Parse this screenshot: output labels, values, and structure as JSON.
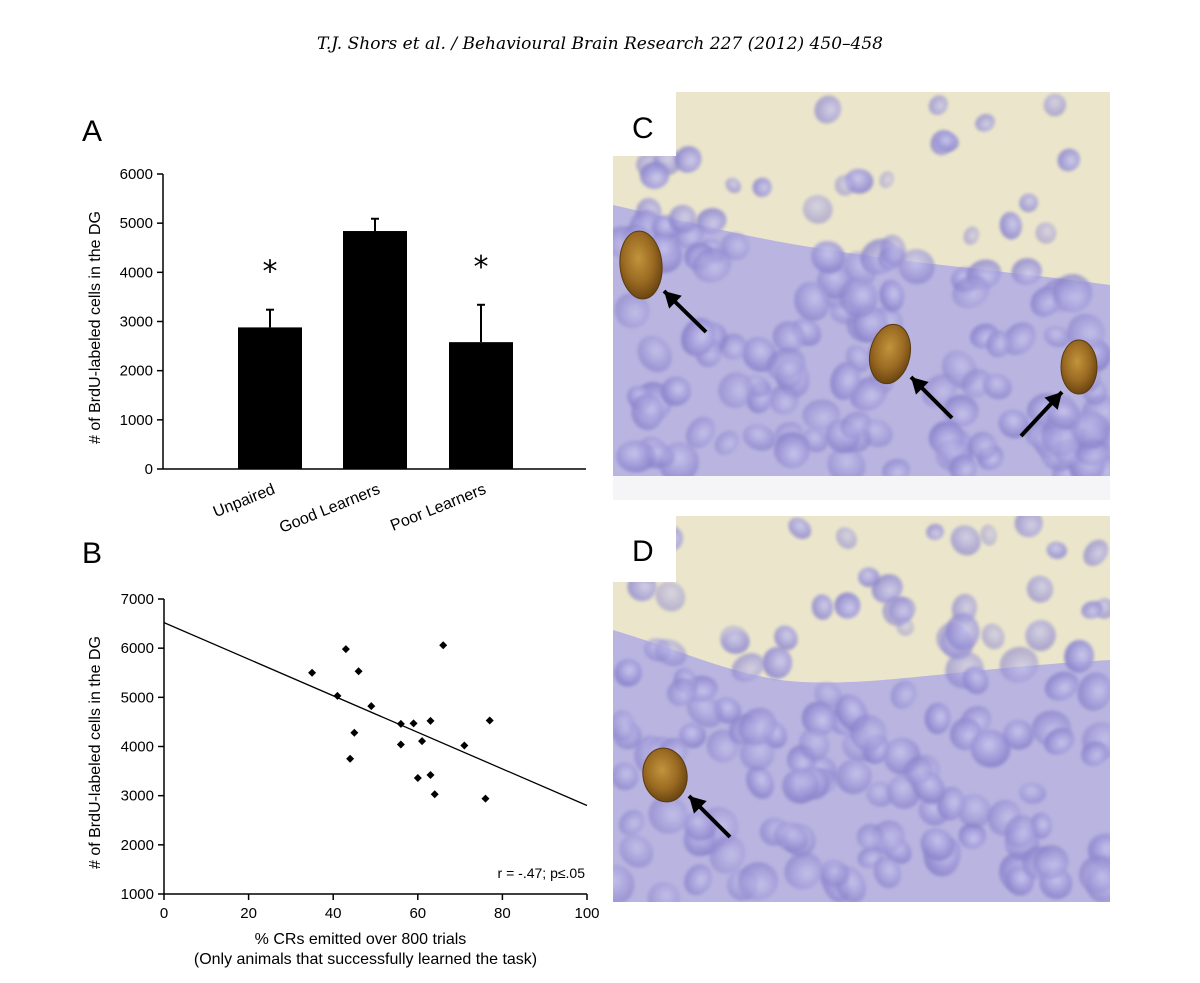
{
  "header": {
    "citation": "T.J. Shors et al. / Behavioural Brain Research 227 (2012) 450–458"
  },
  "panels": {
    "a": "A",
    "b": "B",
    "c": "C",
    "d": "D"
  },
  "chart_data": [
    {
      "panel": "A",
      "type": "bar",
      "categories": [
        "Unpaired",
        "Good Learners",
        "Poor Learners"
      ],
      "values": [
        2880,
        4840,
        2580
      ],
      "errors": [
        360,
        250,
        760
      ],
      "significance": [
        "*",
        "",
        "*"
      ],
      "ylabel": "# of BrdU-labeled cells in the DG",
      "xlabel": "",
      "ylim": [
        0,
        6000
      ],
      "yticks": [
        "0",
        "1000",
        "2000",
        "3000",
        "4000",
        "5000",
        "6000"
      ],
      "bar_color": "#000000"
    },
    {
      "panel": "B",
      "type": "scatter",
      "points": [
        [
          35,
          5500
        ],
        [
          41,
          5030
        ],
        [
          43,
          5980
        ],
        [
          44,
          3750
        ],
        [
          45,
          4280
        ],
        [
          46,
          5530
        ],
        [
          49,
          4820
        ],
        [
          56,
          4460
        ],
        [
          56,
          4040
        ],
        [
          59,
          4470
        ],
        [
          60,
          3360
        ],
        [
          61,
          4110
        ],
        [
          63,
          4520
        ],
        [
          63,
          3420
        ],
        [
          64,
          3030
        ],
        [
          66,
          6060
        ],
        [
          71,
          4020
        ],
        [
          76,
          2940
        ],
        [
          77,
          4530
        ]
      ],
      "fit_line": [
        [
          0,
          6520
        ],
        [
          100,
          2800
        ]
      ],
      "xlabel": "% CRs emitted over 800 trials",
      "xlabel2": "(Only animals that successfully learned the task)",
      "ylabel": "# of BrdU-labeled cells in the DG",
      "xlim": [
        0,
        100
      ],
      "ylim": [
        1000,
        7000
      ],
      "xticks": [
        "0",
        "20",
        "40",
        "60",
        "80",
        "100"
      ],
      "yticks": [
        "1000",
        "2000",
        "3000",
        "4000",
        "5000",
        "6000",
        "7000"
      ],
      "annotation": "r = -.47; p≤.05"
    }
  ],
  "micrographs": {
    "stain_color": "#a6a2d8",
    "background_color": "#e9e4c8",
    "labeled_cell_color": "#8a5a1a"
  }
}
